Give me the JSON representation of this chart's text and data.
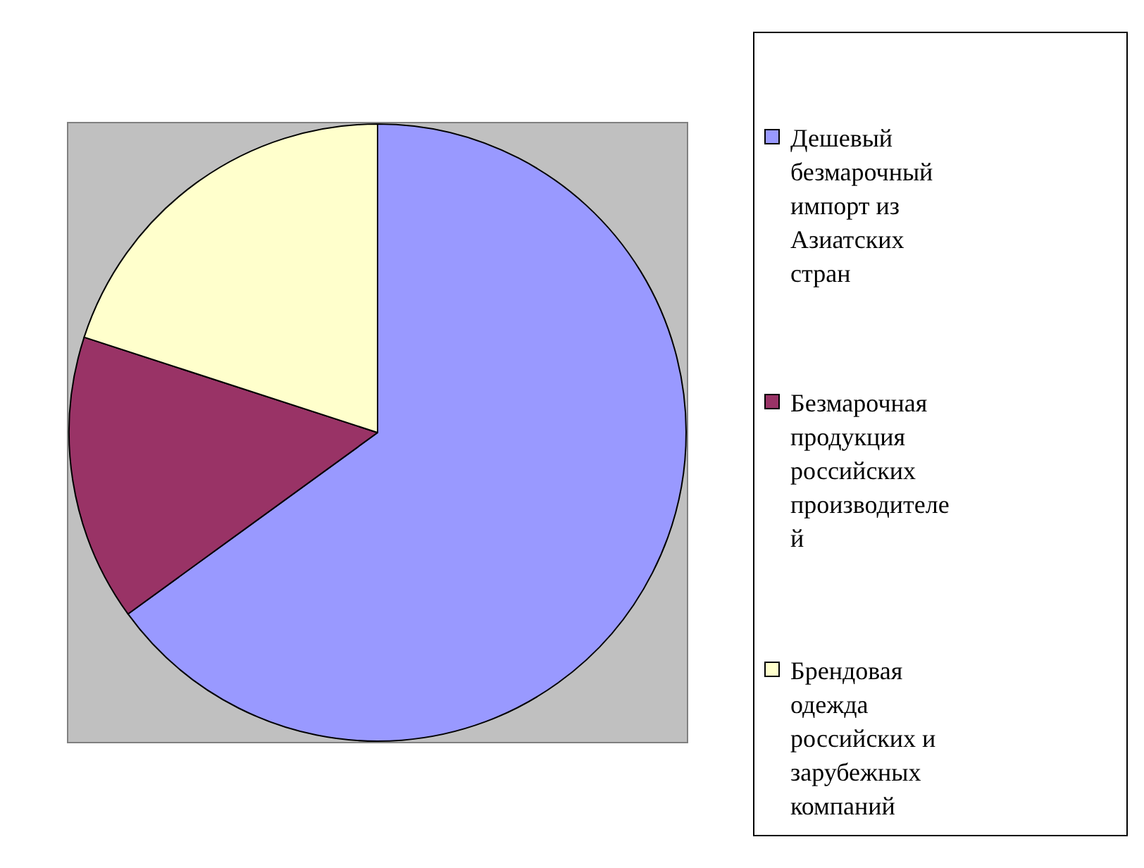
{
  "chart_data": {
    "type": "pie",
    "categories": [
      "Дешевый безмарочный импорт из Азиатских стран",
      "Безмарочная продукция российских производителей",
      "Брендовая одежда российских и зарубежных компаний"
    ],
    "values": [
      65,
      15,
      20
    ],
    "colors": [
      "#9999ff",
      "#993366",
      "#ffffcc"
    ],
    "legend": "right"
  }
}
